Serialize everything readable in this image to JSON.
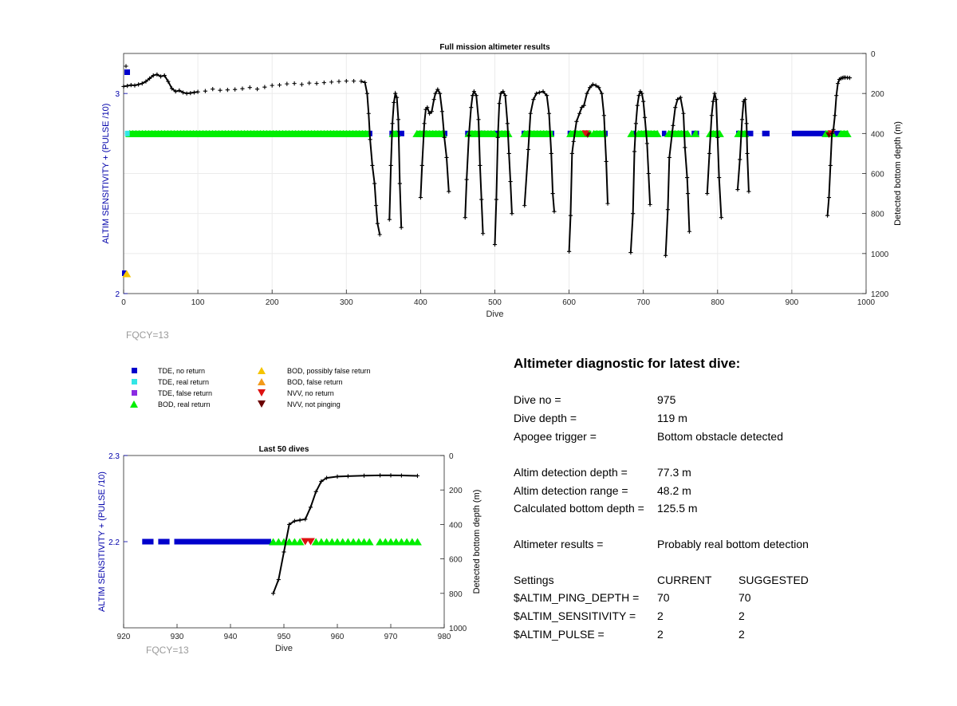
{
  "chart_data": [
    {
      "type": "scatter",
      "title": "Full mission altimeter results",
      "xlabel": "Dive",
      "ylabel_left": "ALTIM SENSITIVITY + (PULSE /10)",
      "ylabel_right": "Detected bottom depth (m)",
      "xlim": [
        0,
        1000
      ],
      "ylim_left": [
        2,
        3.2
      ],
      "ylim_right": [
        0,
        1200
      ],
      "right_axis_reversed": true,
      "xticks": [
        0,
        100,
        200,
        300,
        400,
        500,
        600,
        700,
        800,
        900,
        1000
      ],
      "yticks_left": [
        2,
        3
      ],
      "yticks_right": [
        0,
        200,
        400,
        600,
        800,
        1000,
        1200
      ],
      "grid": true,
      "bottom_depth_series": {
        "name": "Detected bottom depth",
        "points": [
          [
            0,
            165
          ],
          [
            5,
            162
          ],
          [
            10,
            158
          ],
          [
            15,
            160
          ],
          [
            20,
            155
          ],
          [
            25,
            150
          ],
          [
            30,
            140
          ],
          [
            35,
            125
          ],
          [
            40,
            110
          ],
          [
            45,
            105
          ],
          [
            50,
            115
          ],
          [
            55,
            110
          ],
          [
            60,
            140
          ],
          [
            65,
            175
          ],
          [
            70,
            190
          ],
          [
            75,
            185
          ],
          [
            80,
            195
          ],
          [
            85,
            200
          ],
          [
            90,
            198
          ],
          [
            95,
            195
          ],
          [
            100,
            192
          ],
          [
            110,
            188
          ],
          [
            120,
            178
          ],
          [
            130,
            184
          ],
          [
            140,
            182
          ],
          [
            150,
            180
          ],
          [
            160,
            176
          ],
          [
            170,
            170
          ],
          [
            180,
            178
          ],
          [
            190,
            168
          ],
          [
            200,
            160
          ],
          [
            210,
            158
          ],
          [
            220,
            152
          ],
          [
            230,
            150
          ],
          [
            240,
            155
          ],
          [
            250,
            148
          ],
          [
            260,
            150
          ],
          [
            270,
            146
          ],
          [
            280,
            143
          ],
          [
            290,
            140
          ],
          [
            300,
            138
          ],
          [
            310,
            138
          ],
          [
            320,
            139
          ],
          [
            325,
            145
          ],
          [
            328,
            200
          ],
          [
            330,
            300
          ],
          [
            332,
            430
          ],
          [
            335,
            560
          ],
          [
            338,
            650
          ],
          [
            340,
            760
          ],
          [
            342,
            850
          ],
          [
            345,
            905
          ],
          [
            358,
            830
          ],
          [
            360,
            560
          ],
          [
            362,
            350
          ],
          [
            364,
            245
          ],
          [
            366,
            200
          ],
          [
            368,
            220
          ],
          [
            370,
            330
          ],
          [
            372,
            650
          ],
          [
            374,
            870
          ],
          [
            400,
            720
          ],
          [
            402,
            560
          ],
          [
            405,
            350
          ],
          [
            407,
            280
          ],
          [
            409,
            270
          ],
          [
            412,
            300
          ],
          [
            415,
            290
          ],
          [
            418,
            230
          ],
          [
            420,
            200
          ],
          [
            423,
            180
          ],
          [
            426,
            200
          ],
          [
            429,
            290
          ],
          [
            432,
            420
          ],
          [
            435,
            520
          ],
          [
            438,
            690
          ],
          [
            460,
            820
          ],
          [
            462,
            630
          ],
          [
            465,
            410
          ],
          [
            468,
            270
          ],
          [
            470,
            210
          ],
          [
            472,
            190
          ],
          [
            475,
            210
          ],
          [
            478,
            330
          ],
          [
            480,
            560
          ],
          [
            482,
            730
          ],
          [
            484,
            900
          ],
          [
            500,
            955
          ],
          [
            502,
            730
          ],
          [
            504,
            420
          ],
          [
            506,
            250
          ],
          [
            508,
            200
          ],
          [
            511,
            190
          ],
          [
            514,
            210
          ],
          [
            517,
            350
          ],
          [
            519,
            500
          ],
          [
            521,
            640
          ],
          [
            523,
            800
          ],
          [
            540,
            760
          ],
          [
            545,
            480
          ],
          [
            548,
            300
          ],
          [
            552,
            230
          ],
          [
            556,
            200
          ],
          [
            560,
            195
          ],
          [
            565,
            190
          ],
          [
            570,
            210
          ],
          [
            573,
            300
          ],
          [
            576,
            500
          ],
          [
            578,
            700
          ],
          [
            580,
            790
          ],
          [
            600,
            990
          ],
          [
            602,
            810
          ],
          [
            604,
            500
          ],
          [
            606,
            440
          ],
          [
            610,
            340
          ],
          [
            614,
            300
          ],
          [
            617,
            270
          ],
          [
            620,
            260
          ],
          [
            624,
            200
          ],
          [
            628,
            170
          ],
          [
            632,
            155
          ],
          [
            636,
            160
          ],
          [
            640,
            170
          ],
          [
            644,
            200
          ],
          [
            647,
            310
          ],
          [
            650,
            540
          ],
          [
            652,
            750
          ],
          [
            683,
            995
          ],
          [
            686,
            800
          ],
          [
            688,
            490
          ],
          [
            690,
            350
          ],
          [
            692,
            260
          ],
          [
            694,
            210
          ],
          [
            696,
            190
          ],
          [
            698,
            200
          ],
          [
            700,
            240
          ],
          [
            702,
            320
          ],
          [
            705,
            450
          ],
          [
            707,
            600
          ],
          [
            709,
            755
          ],
          [
            730,
            1010
          ],
          [
            733,
            780
          ],
          [
            735,
            520
          ],
          [
            740,
            360
          ],
          [
            743,
            270
          ],
          [
            746,
            230
          ],
          [
            750,
            220
          ],
          [
            754,
            300
          ],
          [
            756,
            470
          ],
          [
            759,
            620
          ],
          [
            760,
            700
          ],
          [
            762,
            890
          ],
          [
            786,
            700
          ],
          [
            789,
            500
          ],
          [
            792,
            310
          ],
          [
            794,
            240
          ],
          [
            796,
            200
          ],
          [
            798,
            230
          ],
          [
            800,
            420
          ],
          [
            802,
            620
          ],
          [
            805,
            820
          ],
          [
            827,
            680
          ],
          [
            830,
            530
          ],
          [
            833,
            330
          ],
          [
            835,
            240
          ],
          [
            837,
            230
          ],
          [
            839,
            350
          ],
          [
            840,
            500
          ],
          [
            842,
            690
          ],
          [
            948,
            810
          ],
          [
            950,
            720
          ],
          [
            952,
            560
          ],
          [
            954,
            400
          ],
          [
            956,
            380
          ],
          [
            958,
            310
          ],
          [
            960,
            210
          ],
          [
            962,
            150
          ],
          [
            964,
            130
          ],
          [
            966,
            125
          ],
          [
            968,
            122
          ],
          [
            970,
            120
          ],
          [
            972,
            120
          ],
          [
            975,
            121
          ],
          [
            978,
            122
          ]
        ]
      },
      "markers": {
        "tde_no_return_segments": [
          [
            330,
            335
          ],
          [
            358,
            362
          ],
          [
            368,
            378
          ],
          [
            405,
            410
          ],
          [
            432,
            436
          ],
          [
            460,
            464
          ],
          [
            480,
            486
          ],
          [
            500,
            506
          ],
          [
            536,
            540
          ],
          [
            575,
            580
          ],
          [
            598,
            602
          ],
          [
            645,
            652
          ],
          [
            686,
            690
          ],
          [
            703,
            709
          ],
          [
            725,
            731
          ],
          [
            748,
            752
          ],
          [
            765,
            775
          ],
          [
            798,
            803
          ],
          [
            825,
            834
          ],
          [
            840,
            848
          ],
          [
            860,
            870
          ],
          [
            900,
            945
          ],
          [
            955,
            966
          ]
        ],
        "bod_real_return_segments": [
          [
            8,
            330
          ],
          [
            363,
            368
          ],
          [
            395,
            433
          ],
          [
            465,
            500
          ],
          [
            505,
            520
          ],
          [
            540,
            578
          ],
          [
            602,
            630
          ],
          [
            633,
            650
          ],
          [
            684,
            687
          ],
          [
            693,
            720
          ],
          [
            734,
            760
          ],
          [
            770,
            772
          ],
          [
            790,
            803
          ],
          [
            828,
            840
          ],
          [
            946,
            955
          ],
          [
            966,
            976
          ]
        ],
        "nvv_no_return_x": [
          622,
          953
        ],
        "nvv_not_pinging_x": [
          625,
          950
        ],
        "tde_real_return_x": [
          5
        ],
        "bod_possibly_false_x": [
          2
        ]
      }
    },
    {
      "type": "scatter",
      "title": "Last 50 dives",
      "xlabel": "Dive",
      "ylabel_left": "ALTIM SENSITIVITY + (PULSE /10)",
      "ylabel_right": "Detected bottom depth (m)",
      "xlim": [
        920,
        980
      ],
      "ylim_left": [
        2.1,
        2.3
      ],
      "ylim_right": [
        0,
        1000
      ],
      "right_axis_reversed": true,
      "xticks": [
        920,
        930,
        940,
        950,
        960,
        970,
        980
      ],
      "yticks_left": [
        2.2,
        2.3
      ],
      "yticks_right": [
        0,
        200,
        400,
        600,
        800,
        1000
      ],
      "grid": false,
      "bottom_depth_series": {
        "name": "Detected bottom depth",
        "points": [
          [
            948,
            800
          ],
          [
            949,
            720
          ],
          [
            950,
            560
          ],
          [
            951,
            400
          ],
          [
            952,
            380
          ],
          [
            953,
            375
          ],
          [
            954,
            370
          ],
          [
            955,
            300
          ],
          [
            956,
            210
          ],
          [
            957,
            150
          ],
          [
            958,
            130
          ],
          [
            960,
            122
          ],
          [
            962,
            120
          ],
          [
            965,
            117
          ],
          [
            968,
            115
          ],
          [
            970,
            115
          ],
          [
            972,
            116
          ],
          [
            975,
            118
          ]
        ]
      },
      "markers": {
        "tde_no_return_x": [
          924,
          925,
          927,
          928,
          930,
          931,
          932,
          933,
          934,
          935,
          936,
          937,
          938,
          939,
          940,
          941,
          942,
          943,
          944,
          945,
          946,
          947
        ],
        "bod_real_return_x": [
          948,
          949,
          950,
          951,
          952,
          953,
          956,
          957,
          958,
          959,
          960,
          961,
          962,
          963,
          964,
          965,
          966,
          968,
          969,
          970,
          971,
          972,
          973,
          974,
          975
        ],
        "nvv_no_return_x": [
          954,
          955
        ]
      }
    }
  ],
  "fqcy_label": "FQCY=13",
  "legend": {
    "items": [
      {
        "label": "TDE, no return",
        "marker": "square",
        "color": "#0000cc"
      },
      {
        "label": "TDE, real return",
        "marker": "square",
        "color": "#33e6e6"
      },
      {
        "label": "TDE, false return",
        "marker": "square",
        "color": "#8a2be2"
      },
      {
        "label": "BOD, real return",
        "marker": "triangle-up",
        "color": "#00ee00"
      },
      {
        "label": "BOD, possibly false return",
        "marker": "triangle-up",
        "color": "#f5c400"
      },
      {
        "label": "BOD, false return",
        "marker": "triangle-up",
        "color": "#f39a1a"
      },
      {
        "label": "NVV, no return",
        "marker": "triangle-down",
        "color": "#dd1111"
      },
      {
        "label": "NVV, not pinging",
        "marker": "triangle-down",
        "color": "#6b0000"
      }
    ]
  },
  "diagnostic": {
    "title": "Altimeter diagnostic for latest dive:",
    "dive_no_label": "Dive no =",
    "dive_no": "975",
    "dive_depth_label": "Dive depth =",
    "dive_depth": "119 m",
    "apogee_label": "Apogee trigger =",
    "apogee": "Bottom obstacle detected",
    "det_depth_label": "Altim detection depth =",
    "det_depth": "77.3 m",
    "det_range_label": "Altim detection range =",
    "det_range": "48.2 m",
    "calc_depth_label": "Calculated bottom depth =",
    "calc_depth": "125.5 m",
    "results_label": "Altimeter results =",
    "results": "Probably real bottom detection",
    "settings_label": "Settings",
    "current_label": "CURRENT",
    "suggested_label": "SUGGESTED",
    "ping_depth_label": "$ALTIM_PING_DEPTH =",
    "ping_depth_current": "70",
    "ping_depth_suggested": "70",
    "sensitivity_label": "$ALTIM_SENSITIVITY =",
    "sensitivity_current": "2",
    "sensitivity_suggested": "2",
    "pulse_label": "$ALTIM_PULSE =",
    "pulse_current": "2",
    "pulse_suggested": "2"
  },
  "colors": {
    "axis_left": "#0000aa",
    "axis_right": "#000000",
    "depth_line": "#000000",
    "fqcy": "#9a9a9a"
  }
}
